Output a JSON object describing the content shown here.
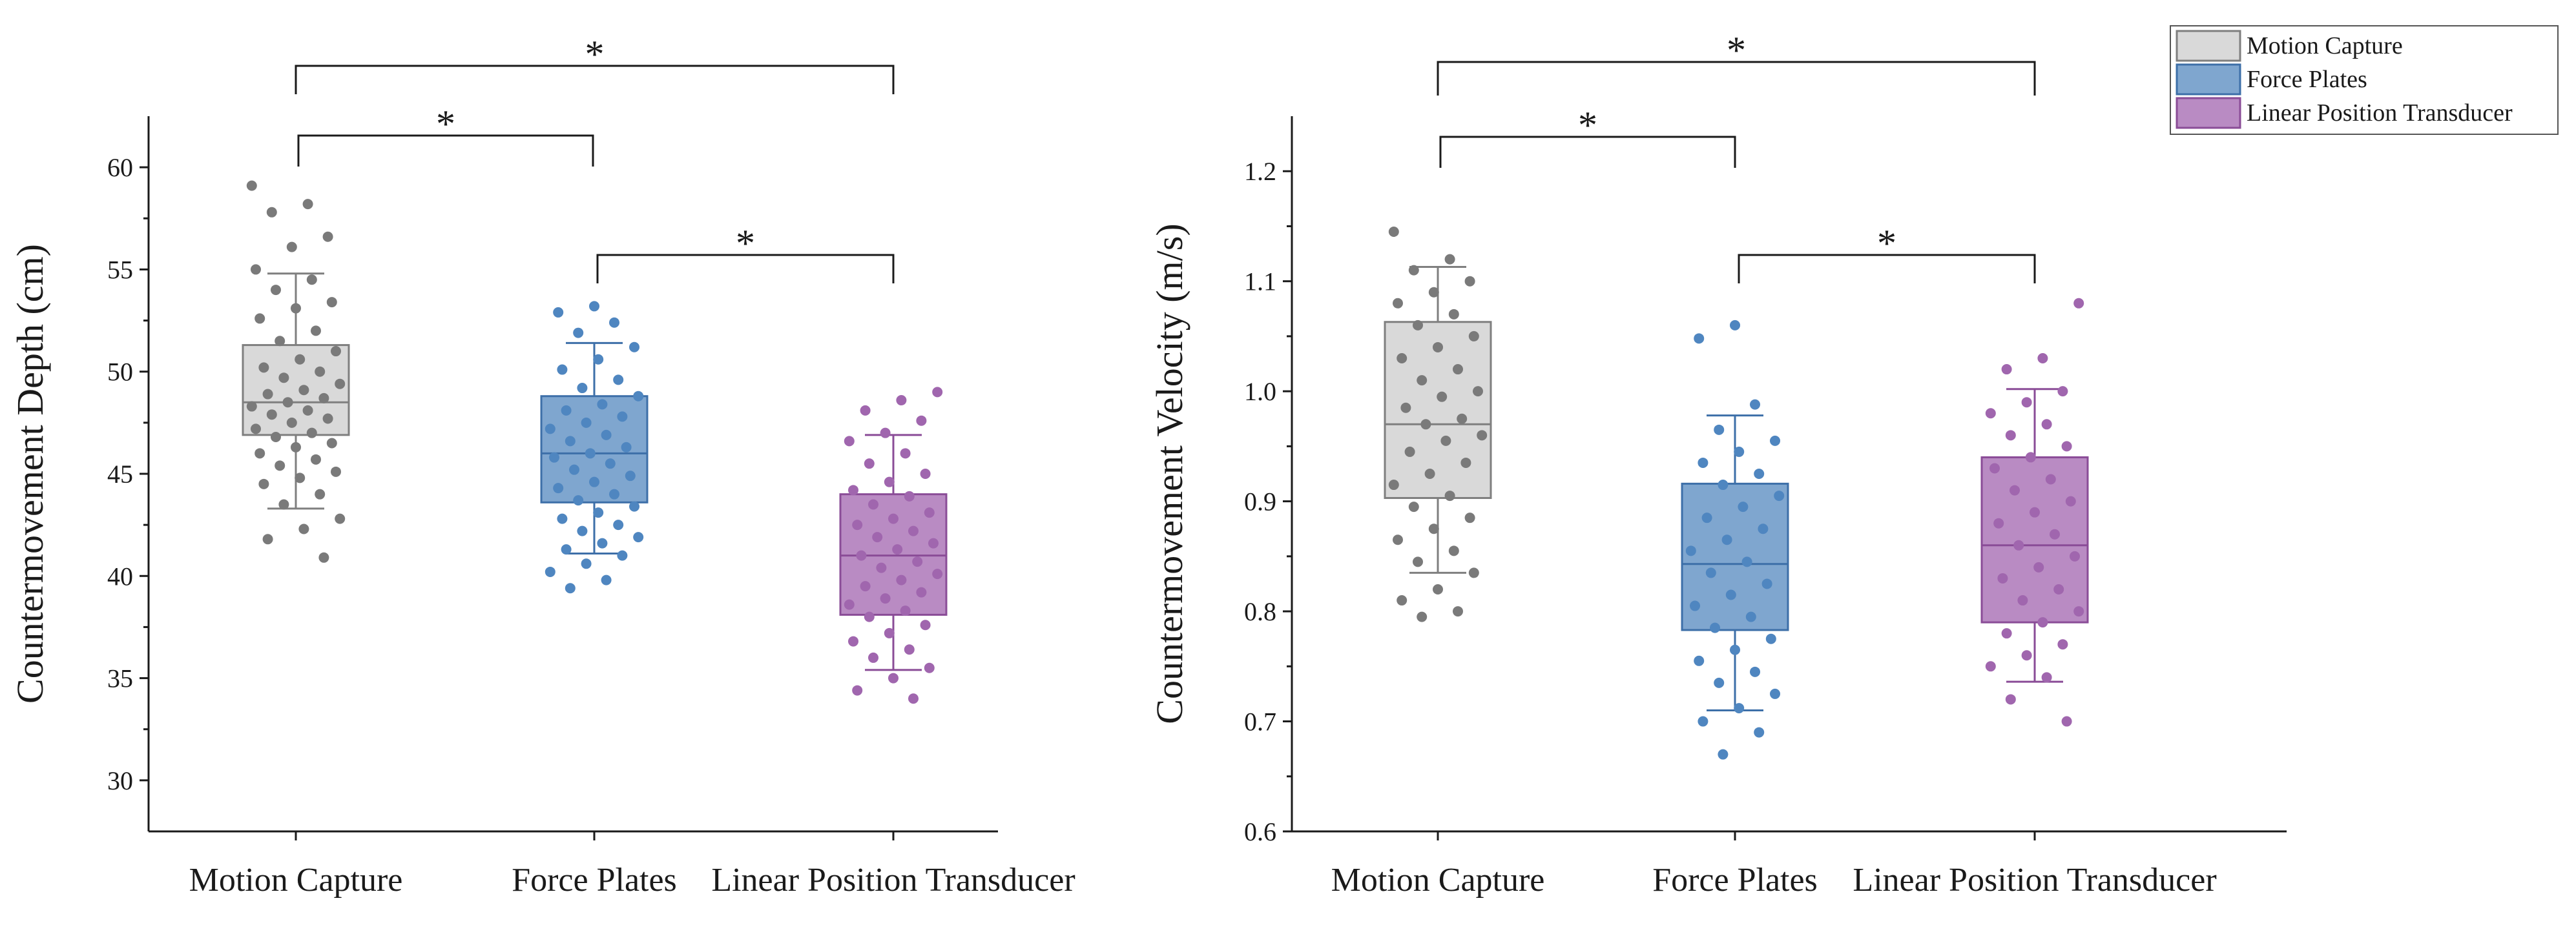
{
  "colors": {
    "Motion Capture": {
      "fill": "#d9d9d9",
      "stroke": "#7f7f7f",
      "point": "#7a7a7a"
    },
    "Force Plates": {
      "fill": "#7fa6cf",
      "stroke": "#3d6fa8",
      "point": "#4f86c0"
    },
    "Linear Position Transducer": {
      "fill": "#b98bc3",
      "stroke": "#8a4c97",
      "point": "#a066ae"
    }
  },
  "legend": {
    "entries": [
      "Motion Capture",
      "Force Plates",
      "Linear Position Transducer"
    ],
    "placement": "top-right"
  },
  "chart_data": [
    {
      "type": "box",
      "ylabel": "Countermovement Depth (cm)",
      "categories": [
        "Motion Capture",
        "Force Plates",
        "Linear Position Transducer"
      ],
      "ylim": [
        27.5,
        62.5
      ],
      "yticks": [
        30,
        35,
        40,
        45,
        50,
        55,
        60
      ],
      "boxes": [
        {
          "name": "Motion Capture",
          "q1": 46.9,
          "median": 48.5,
          "q3": 51.3,
          "whisker_low": 43.3,
          "whisker_high": 54.8
        },
        {
          "name": "Force Plates",
          "q1": 43.6,
          "median": 46.0,
          "q3": 48.8,
          "whisker_low": 41.1,
          "whisker_high": 51.4
        },
        {
          "name": "Linear Position Transducer",
          "q1": 38.1,
          "median": 41.0,
          "q3": 44.0,
          "whisker_low": 35.4,
          "whisker_high": 46.9
        }
      ],
      "points": [
        [
          59.1,
          58.2,
          57.8,
          56.6,
          56.1,
          55.0,
          54.5,
          54.0,
          53.4,
          53.1,
          52.6,
          52.0,
          51.5,
          51.0,
          50.6,
          50.2,
          50.0,
          49.7,
          49.4,
          49.1,
          48.9,
          48.7,
          48.5,
          48.3,
          48.1,
          47.9,
          47.7,
          47.5,
          47.2,
          47.0,
          46.8,
          46.5,
          46.3,
          46.0,
          45.7,
          45.4,
          45.1,
          44.8,
          44.5,
          44.0,
          43.5,
          42.8,
          42.3,
          41.8,
          40.9
        ],
        [
          53.2,
          52.9,
          52.4,
          51.9,
          51.2,
          50.6,
          50.1,
          49.6,
          49.2,
          48.8,
          48.4,
          48.1,
          47.8,
          47.5,
          47.2,
          46.9,
          46.6,
          46.3,
          46.0,
          45.8,
          45.5,
          45.2,
          44.9,
          44.6,
          44.3,
          44.0,
          43.7,
          43.4,
          43.1,
          42.8,
          42.5,
          42.2,
          41.9,
          41.6,
          41.3,
          41.0,
          40.6,
          40.2,
          39.8,
          39.4
        ],
        [
          49.0,
          48.6,
          48.1,
          47.6,
          47.0,
          46.6,
          46.0,
          45.5,
          45.0,
          44.6,
          44.2,
          43.9,
          43.5,
          43.1,
          42.8,
          42.5,
          42.2,
          41.9,
          41.6,
          41.3,
          41.0,
          40.7,
          40.4,
          40.1,
          39.8,
          39.5,
          39.2,
          38.9,
          38.6,
          38.3,
          38.0,
          37.6,
          37.2,
          36.8,
          36.4,
          36.0,
          35.5,
          35.0,
          34.4,
          34.0
        ]
      ],
      "significance": [
        {
          "from": "Motion Capture",
          "to": "Linear Position Transducer",
          "label": "*"
        },
        {
          "from": "Motion Capture",
          "to": "Force Plates",
          "label": "*"
        },
        {
          "from": "Force Plates",
          "to": "Linear Position Transducer",
          "label": "*"
        }
      ]
    },
    {
      "type": "box",
      "ylabel": "Countermovement Velocity (m/s)",
      "categories": [
        "Motion Capture",
        "Force Plates",
        "Linear Position Transducer"
      ],
      "ylim": [
        0.6,
        1.25
      ],
      "yticks": [
        "0.6",
        "0.7",
        "0.8",
        "0.9",
        "1.0",
        "1.1",
        "1.2"
      ],
      "boxes": [
        {
          "name": "Motion Capture",
          "q1": 0.903,
          "median": 0.97,
          "q3": 1.063,
          "whisker_low": 0.835,
          "whisker_high": 1.113
        },
        {
          "name": "Force Plates",
          "q1": 0.783,
          "median": 0.843,
          "q3": 0.916,
          "whisker_low": 0.71,
          "whisker_high": 0.978
        },
        {
          "name": "Linear Position Transducer",
          "q1": 0.79,
          "median": 0.86,
          "q3": 0.94,
          "whisker_low": 0.736,
          "whisker_high": 1.002
        }
      ],
      "points": [
        [
          1.145,
          1.12,
          1.11,
          1.1,
          1.09,
          1.08,
          1.07,
          1.06,
          1.05,
          1.04,
          1.03,
          1.02,
          1.01,
          1.0,
          0.995,
          0.985,
          0.975,
          0.97,
          0.96,
          0.955,
          0.945,
          0.935,
          0.925,
          0.915,
          0.905,
          0.895,
          0.885,
          0.875,
          0.865,
          0.855,
          0.845,
          0.835,
          0.82,
          0.81,
          0.8,
          0.795
        ],
        [
          1.06,
          1.048,
          0.988,
          0.965,
          0.955,
          0.945,
          0.935,
          0.925,
          0.915,
          0.905,
          0.895,
          0.885,
          0.875,
          0.865,
          0.855,
          0.845,
          0.835,
          0.825,
          0.815,
          0.805,
          0.795,
          0.785,
          0.775,
          0.765,
          0.755,
          0.745,
          0.735,
          0.725,
          0.712,
          0.7,
          0.69,
          0.67
        ],
        [
          1.08,
          1.03,
          1.02,
          1.0,
          0.99,
          0.98,
          0.97,
          0.96,
          0.95,
          0.94,
          0.93,
          0.92,
          0.91,
          0.9,
          0.89,
          0.88,
          0.87,
          0.86,
          0.85,
          0.84,
          0.83,
          0.82,
          0.81,
          0.8,
          0.79,
          0.78,
          0.77,
          0.76,
          0.75,
          0.74,
          0.72,
          0.7
        ]
      ],
      "significance": [
        {
          "from": "Motion Capture",
          "to": "Linear Position Transducer",
          "label": "*"
        },
        {
          "from": "Motion Capture",
          "to": "Force Plates",
          "label": "*"
        },
        {
          "from": "Force Plates",
          "to": "Linear Position Transducer",
          "label": "*"
        }
      ]
    }
  ]
}
